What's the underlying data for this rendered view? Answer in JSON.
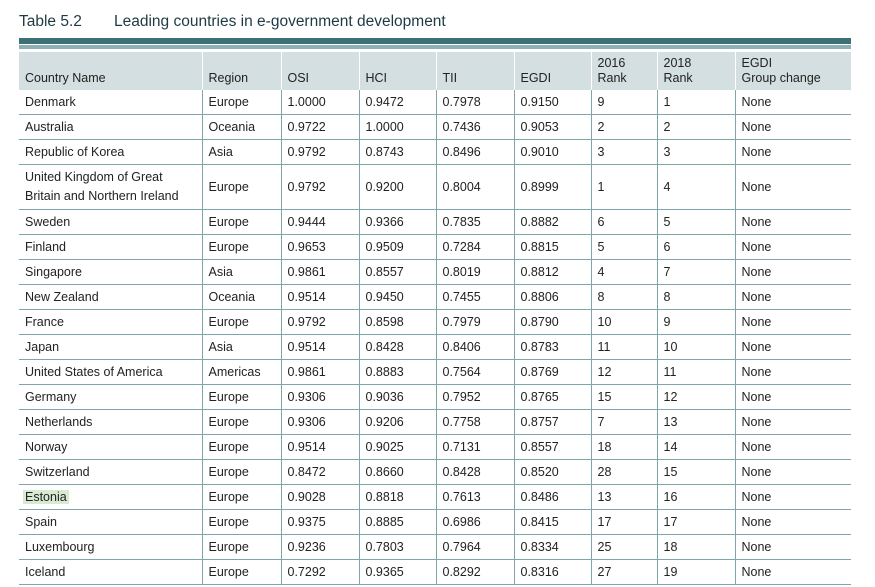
{
  "table": {
    "number": "Table 5.2",
    "caption": "Leading countries in e-government development",
    "headers": {
      "country": "Country Name",
      "region": "Region",
      "osi": "OSI",
      "hci": "HCI",
      "tii": "TII",
      "egdi": "EGDI",
      "rank2016_line1": "2016",
      "rank2016_line2": "Rank",
      "rank2018_line1": "2018",
      "rank2018_line2": "Rank",
      "group_line1": "EGDI",
      "group_line2": "Group change"
    },
    "rows": [
      {
        "country": "Denmark",
        "region": "Europe",
        "osi": "1.0000",
        "hci": "0.9472",
        "tii": "0.7978",
        "egdi": "0.9150",
        "rank2016": "9",
        "rank2018": "1",
        "group": "None"
      },
      {
        "country": "Australia",
        "region": "Oceania",
        "osi": "0.9722",
        "hci": "1.0000",
        "tii": "0.7436",
        "egdi": "0.9053",
        "rank2016": "2",
        "rank2018": "2",
        "group": "None"
      },
      {
        "country": "Republic of Korea",
        "region": "Asia",
        "osi": "0.9792",
        "hci": "0.8743",
        "tii": "0.8496",
        "egdi": "0.9010",
        "rank2016": "3",
        "rank2018": "3",
        "group": "None"
      },
      {
        "country": "United Kingdom of Great Britain and Northern Ireland",
        "region": "Europe",
        "osi": "0.9792",
        "hci": "0.9200",
        "tii": "0.8004",
        "egdi": "0.8999",
        "rank2016": "1",
        "rank2018": "4",
        "group": "None"
      },
      {
        "country": "Sweden",
        "region": "Europe",
        "osi": "0.9444",
        "hci": "0.9366",
        "tii": "0.7835",
        "egdi": "0.8882",
        "rank2016": "6",
        "rank2018": "5",
        "group": "None"
      },
      {
        "country": "Finland",
        "region": "Europe",
        "osi": "0.9653",
        "hci": "0.9509",
        "tii": "0.7284",
        "egdi": "0.8815",
        "rank2016": "5",
        "rank2018": "6",
        "group": "None"
      },
      {
        "country": "Singapore",
        "region": "Asia",
        "osi": "0.9861",
        "hci": "0.8557",
        "tii": "0.8019",
        "egdi": "0.8812",
        "rank2016": "4",
        "rank2018": "7",
        "group": "None"
      },
      {
        "country": "New Zealand",
        "region": "Oceania",
        "osi": "0.9514",
        "hci": "0.9450",
        "tii": "0.7455",
        "egdi": "0.8806",
        "rank2016": "8",
        "rank2018": "8",
        "group": "None"
      },
      {
        "country": "France",
        "region": "Europe",
        "osi": "0.9792",
        "hci": "0.8598",
        "tii": "0.7979",
        "egdi": "0.8790",
        "rank2016": "10",
        "rank2018": "9",
        "group": "None"
      },
      {
        "country": "Japan",
        "region": "Asia",
        "osi": "0.9514",
        "hci": "0.8428",
        "tii": "0.8406",
        "egdi": "0.8783",
        "rank2016": "11",
        "rank2018": "10",
        "group": "None"
      },
      {
        "country": "United States of America",
        "region": "Americas",
        "osi": "0.9861",
        "hci": "0.8883",
        "tii": "0.7564",
        "egdi": "0.8769",
        "rank2016": "12",
        "rank2018": "11",
        "group": "None"
      },
      {
        "country": "Germany",
        "region": "Europe",
        "osi": "0.9306",
        "hci": "0.9036",
        "tii": "0.7952",
        "egdi": "0.8765",
        "rank2016": "15",
        "rank2018": "12",
        "group": "None"
      },
      {
        "country": "Netherlands",
        "region": "Europe",
        "osi": "0.9306",
        "hci": "0.9206",
        "tii": "0.7758",
        "egdi": "0.8757",
        "rank2016": "7",
        "rank2018": "13",
        "group": "None"
      },
      {
        "country": "Norway",
        "region": "Europe",
        "osi": "0.9514",
        "hci": "0.9025",
        "tii": "0.7131",
        "egdi": "0.8557",
        "rank2016": "18",
        "rank2018": "14",
        "group": "None"
      },
      {
        "country": "Switzerland",
        "region": "Europe",
        "osi": "0.8472",
        "hci": "0.8660",
        "tii": "0.8428",
        "egdi": "0.8520",
        "rank2016": "28",
        "rank2018": "15",
        "group": "None"
      },
      {
        "country": "Estonia",
        "region": "Europe",
        "osi": "0.9028",
        "hci": "0.8818",
        "tii": "0.7613",
        "egdi": "0.8486",
        "rank2016": "13",
        "rank2018": "16",
        "group": "None",
        "highlighted": true
      },
      {
        "country": "Spain",
        "region": "Europe",
        "osi": "0.9375",
        "hci": "0.8885",
        "tii": "0.6986",
        "egdi": "0.8415",
        "rank2016": "17",
        "rank2018": "17",
        "group": "None"
      },
      {
        "country": "Luxembourg",
        "region": "Europe",
        "osi": "0.9236",
        "hci": "0.7803",
        "tii": "0.7964",
        "egdi": "0.8334",
        "rank2016": "25",
        "rank2018": "18",
        "group": "None"
      },
      {
        "country": "Iceland",
        "region": "Europe",
        "osi": "0.7292",
        "hci": "0.9365",
        "tii": "0.8292",
        "egdi": "0.8316",
        "rank2016": "27",
        "rank2018": "19",
        "group": "None"
      }
    ]
  },
  "colors": {
    "title_text": "#1f3a44",
    "header_bg": "#d4dfe1",
    "rule_dark": "#3d6f77",
    "rule_light": "#8fb0b3",
    "grid_line": "#7fa5aa",
    "highlight_bg": "#d8ead2"
  }
}
